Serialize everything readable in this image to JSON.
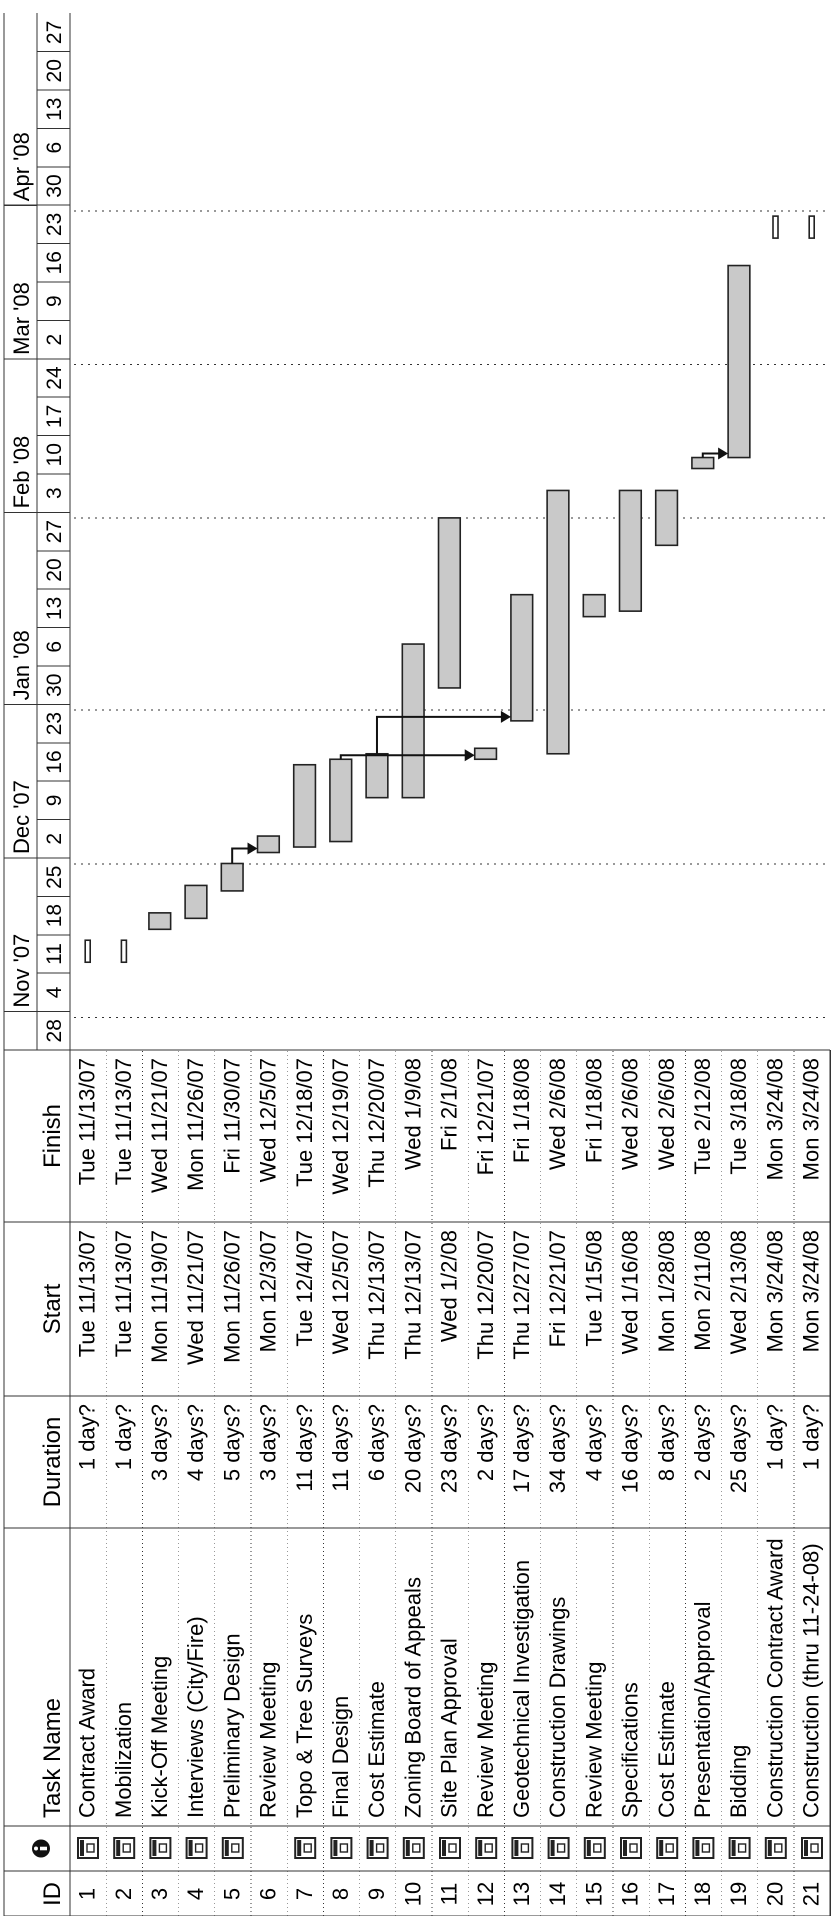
{
  "headers": {
    "id": "ID",
    "indicator_icon": "info-circle-icon",
    "task_name": "Task Name",
    "duration": "Duration",
    "start": "Start",
    "finish": "Finish"
  },
  "timeline": {
    "months": [
      "Nov '07",
      "Dec '07",
      "Jan '08",
      "Feb '08",
      "Mar '08",
      "Apr '08"
    ],
    "weeks": [
      "28",
      "4",
      "11",
      "18",
      "25",
      "2",
      "9",
      "16",
      "23",
      "30",
      "6",
      "13",
      "20",
      "27",
      "3",
      "10",
      "17",
      "24",
      "2",
      "9",
      "16",
      "23",
      "30",
      "6",
      "13",
      "20",
      "27"
    ],
    "first_week_start": "2007-10-28"
  },
  "tasks": [
    {
      "id": "1",
      "name": "Contract Award",
      "duration": "1 day?",
      "start": "Tue 11/13/07",
      "finish": "Tue 11/13/07",
      "start_date": "2007-11-13",
      "finish_date": "2007-11-13",
      "icon": "calendar-task-icon",
      "milestone": true
    },
    {
      "id": "2",
      "name": "Mobilization",
      "duration": "1 day?",
      "start": "Tue 11/13/07",
      "finish": "Tue 11/13/07",
      "start_date": "2007-11-13",
      "finish_date": "2007-11-13",
      "icon": "calendar-task-icon",
      "milestone": true
    },
    {
      "id": "3",
      "name": "Kick-Off Meeting",
      "duration": "3 days?",
      "start": "Mon 11/19/07",
      "finish": "Wed 11/21/07",
      "start_date": "2007-11-19",
      "finish_date": "2007-11-21",
      "icon": "calendar-task-icon"
    },
    {
      "id": "4",
      "name": "Interviews (City/Fire)",
      "duration": "4 days?",
      "start": "Wed 11/21/07",
      "finish": "Mon 11/26/07",
      "start_date": "2007-11-21",
      "finish_date": "2007-11-26",
      "icon": "calendar-task-icon"
    },
    {
      "id": "5",
      "name": "Preliminary Design",
      "duration": "5 days?",
      "start": "Mon 11/26/07",
      "finish": "Fri 11/30/07",
      "start_date": "2007-11-26",
      "finish_date": "2007-11-30",
      "icon": "calendar-task-icon"
    },
    {
      "id": "6",
      "name": "Review Meeting",
      "duration": "3 days?",
      "start": "Mon 12/3/07",
      "finish": "Wed 12/5/07",
      "start_date": "2007-12-03",
      "finish_date": "2007-12-05",
      "icon": ""
    },
    {
      "id": "7",
      "name": "Topo & Tree Surveys",
      "duration": "11 days?",
      "start": "Tue 12/4/07",
      "finish": "Tue 12/18/07",
      "start_date": "2007-12-04",
      "finish_date": "2007-12-18",
      "icon": "calendar-task-icon"
    },
    {
      "id": "8",
      "name": "Final Design",
      "duration": "11 days?",
      "start": "Wed 12/5/07",
      "finish": "Wed 12/19/07",
      "start_date": "2007-12-05",
      "finish_date": "2007-12-19",
      "icon": "calendar-task-icon"
    },
    {
      "id": "9",
      "name": "Cost Estimate",
      "duration": "6 days?",
      "start": "Thu 12/13/07",
      "finish": "Thu 12/20/07",
      "start_date": "2007-12-13",
      "finish_date": "2007-12-20",
      "icon": "calendar-task-icon"
    },
    {
      "id": "10",
      "name": "Zoning Board of Appeals",
      "duration": "20 days?",
      "start": "Thu 12/13/07",
      "finish": "Wed 1/9/08",
      "start_date": "2007-12-13",
      "finish_date": "2008-01-09",
      "icon": "calendar-task-icon"
    },
    {
      "id": "11",
      "name": "Site Plan Approval",
      "duration": "23 days?",
      "start": "Wed 1/2/08",
      "finish": "Fri 2/1/08",
      "start_date": "2008-01-02",
      "finish_date": "2008-02-01",
      "icon": "calendar-task-icon"
    },
    {
      "id": "12",
      "name": "Review Meeting",
      "duration": "2 days?",
      "start": "Thu 12/20/07",
      "finish": "Fri 12/21/07",
      "start_date": "2007-12-20",
      "finish_date": "2007-12-21",
      "icon": "calendar-task-icon"
    },
    {
      "id": "13",
      "name": "Geotechnical Investigation",
      "duration": "17 days?",
      "start": "Thu 12/27/07",
      "finish": "Fri 1/18/08",
      "start_date": "2007-12-27",
      "finish_date": "2008-01-18",
      "icon": "calendar-task-icon"
    },
    {
      "id": "14",
      "name": "Construction Drawings",
      "duration": "34 days?",
      "start": "Fri 12/21/07",
      "finish": "Wed 2/6/08",
      "start_date": "2007-12-21",
      "finish_date": "2008-02-06",
      "icon": "calendar-task-icon"
    },
    {
      "id": "15",
      "name": "Review Meeting",
      "duration": "4 days?",
      "start": "Tue 1/15/08",
      "finish": "Fri 1/18/08",
      "start_date": "2008-01-15",
      "finish_date": "2008-01-18",
      "icon": "calendar-task-icon"
    },
    {
      "id": "16",
      "name": "Specifications",
      "duration": "16 days?",
      "start": "Wed 1/16/08",
      "finish": "Wed 2/6/08",
      "start_date": "2008-01-16",
      "finish_date": "2008-02-06",
      "icon": "calendar-task-icon"
    },
    {
      "id": "17",
      "name": "Cost Estimate",
      "duration": "8 days?",
      "start": "Mon 1/28/08",
      "finish": "Wed 2/6/08",
      "start_date": "2008-01-28",
      "finish_date": "2008-02-06",
      "icon": "calendar-task-icon"
    },
    {
      "id": "18",
      "name": "Presentation/Approval",
      "duration": "2 days?",
      "start": "Mon 2/11/08",
      "finish": "Tue 2/12/08",
      "start_date": "2008-02-11",
      "finish_date": "2008-02-12",
      "icon": "calendar-task-icon"
    },
    {
      "id": "19",
      "name": "Bidding",
      "duration": "25 days?",
      "start": "Wed 2/13/08",
      "finish": "Tue 3/18/08",
      "start_date": "2008-02-13",
      "finish_date": "2008-03-18",
      "icon": "calendar-task-icon"
    },
    {
      "id": "20",
      "name": "Construction Contract Award",
      "duration": "1 day?",
      "start": "Mon 3/24/08",
      "finish": "Mon 3/24/08",
      "start_date": "2008-03-24",
      "finish_date": "2008-03-24",
      "icon": "calendar-task-icon",
      "milestone": true
    },
    {
      "id": "21",
      "name": "Construction (thru 11-24-08)",
      "duration": "1 day?",
      "start": "Mon 3/24/08",
      "finish": "Mon 3/24/08",
      "start_date": "2008-03-24",
      "finish_date": "2008-03-24",
      "icon": "calendar-task-icon",
      "milestone": true
    }
  ],
  "links": [
    {
      "from": "5",
      "to": "6"
    },
    {
      "from": "8",
      "to": "12"
    },
    {
      "from": "9",
      "to": "13"
    },
    {
      "from": "18",
      "to": "19"
    }
  ]
}
